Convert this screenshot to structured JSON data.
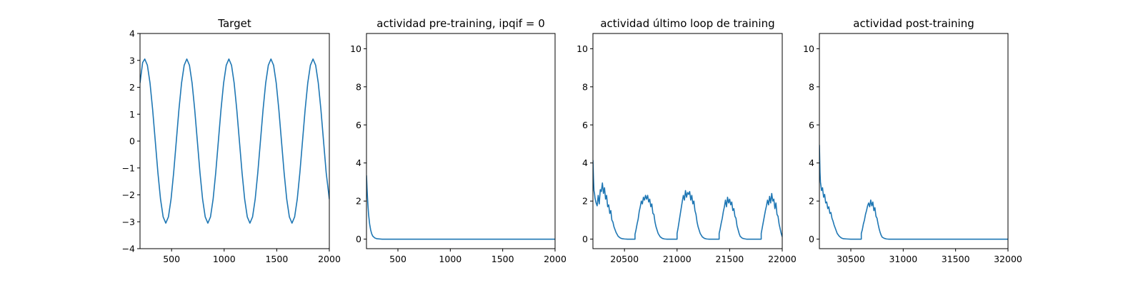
{
  "chart_data": [
    {
      "type": "line",
      "title": "Target",
      "xlabel": "",
      "ylabel": "",
      "xlim": [
        200,
        2000
      ],
      "ylim": [
        -4,
        4
      ],
      "xticks": [
        500,
        1000,
        1500,
        2000
      ],
      "yticks": [
        -4,
        -3,
        -2,
        -1,
        0,
        1,
        2,
        3,
        4
      ],
      "grid": false,
      "legend": "none",
      "color": "#1f77b4",
      "series": [
        {
          "description": "sinusoid amplitude 3.05, period 400, peaks near x=245, 645, 1045, 1445, 1845",
          "x": [
            200,
            225,
            245,
            270,
            295,
            320,
            345,
            370,
            395,
            420,
            445,
            470,
            495,
            520,
            545,
            570,
            595,
            620,
            645,
            670,
            695,
            720,
            745,
            770,
            795,
            820,
            845,
            870,
            895,
            920,
            945,
            970,
            995,
            1020,
            1045,
            1070,
            1095,
            1120,
            1145,
            1170,
            1195,
            1220,
            1245,
            1270,
            1295,
            1320,
            1345,
            1370,
            1395,
            1420,
            1445,
            1470,
            1495,
            1520,
            1545,
            1570,
            1595,
            1620,
            1645,
            1670,
            1695,
            1720,
            1745,
            1770,
            1795,
            1820,
            1845,
            1870,
            1895,
            1920,
            1945,
            1970,
            2000
          ],
          "y": [
            2.16,
            2.92,
            3.05,
            2.82,
            2.16,
            1.17,
            0.0,
            -1.17,
            -2.16,
            -2.82,
            -3.05,
            -2.82,
            -2.16,
            -1.17,
            0.0,
            1.17,
            2.16,
            2.82,
            3.05,
            2.82,
            2.16,
            1.17,
            0.0,
            -1.17,
            -2.16,
            -2.82,
            -3.05,
            -2.82,
            -2.16,
            -1.17,
            0.0,
            1.17,
            2.16,
            2.82,
            3.05,
            2.82,
            2.16,
            1.17,
            0.0,
            -1.17,
            -2.16,
            -2.82,
            -3.05,
            -2.82,
            -2.16,
            -1.17,
            0.0,
            1.17,
            2.16,
            2.82,
            3.05,
            2.82,
            2.16,
            1.17,
            0.0,
            -1.17,
            -2.16,
            -2.82,
            -3.05,
            -2.82,
            -2.16,
            -1.17,
            0.0,
            1.17,
            2.16,
            2.82,
            3.05,
            2.82,
            2.16,
            1.17,
            0.0,
            -1.17,
            -2.16
          ]
        }
      ]
    },
    {
      "type": "line",
      "title": "actividad pre-training, ipqif = 0",
      "xlabel": "",
      "ylabel": "",
      "xlim": [
        200,
        2000
      ],
      "ylim": [
        -0.5,
        10.8
      ],
      "xticks": [
        500,
        1000,
        1500,
        2000
      ],
      "yticks": [
        0,
        2,
        4,
        6,
        8,
        10
      ],
      "grid": false,
      "legend": "none",
      "color": "#1f77b4",
      "series": [
        {
          "x": [
            200,
            205,
            210,
            215,
            220,
            230,
            240,
            250,
            260,
            280,
            300,
            350,
            400,
            600,
            1000,
            1500,
            2000
          ],
          "y": [
            3.35,
            2.7,
            2.15,
            1.7,
            1.3,
            0.8,
            0.48,
            0.28,
            0.16,
            0.06,
            0.02,
            0.0,
            0.0,
            0.0,
            0.0,
            0.0,
            0.0
          ]
        }
      ]
    },
    {
      "type": "line",
      "title": "actividad último loop de training",
      "xlabel": "",
      "ylabel": "",
      "xlim": [
        20200,
        22000
      ],
      "ylim": [
        -0.5,
        10.8
      ],
      "xticks": [
        20500,
        21000,
        21500,
        22000
      ],
      "yticks": [
        0,
        2,
        4,
        6,
        8,
        10
      ],
      "grid": false,
      "legend": "none",
      "color": "#1f77b4",
      "series": [
        {
          "x": [
            20200,
            20205,
            20210,
            20215,
            20220,
            20230,
            20240,
            20250,
            20260,
            20270,
            20280,
            20290,
            20300,
            20310,
            20320,
            20330,
            20340,
            20350,
            20360,
            20370,
            20380,
            20390,
            20400,
            20420,
            20440,
            20460,
            20480,
            20500,
            20530,
            20560,
            20600,
            20600,
            20610,
            20620,
            20630,
            20640,
            20650,
            20660,
            20670,
            20680,
            20690,
            20700,
            20710,
            20720,
            20730,
            20740,
            20750,
            20760,
            20770,
            20780,
            20790,
            20800,
            20820,
            20840,
            20860,
            20880,
            20900,
            20930,
            20960,
            21000,
            21000,
            21010,
            21020,
            21030,
            21040,
            21050,
            21060,
            21070,
            21080,
            21090,
            21100,
            21110,
            21120,
            21130,
            21140,
            21150,
            21160,
            21170,
            21180,
            21190,
            21200,
            21220,
            21240,
            21260,
            21280,
            21300,
            21330,
            21360,
            21400,
            21400,
            21410,
            21420,
            21430,
            21440,
            21450,
            21460,
            21470,
            21480,
            21490,
            21500,
            21510,
            21520,
            21530,
            21540,
            21550,
            21560,
            21570,
            21580,
            21590,
            21600,
            21620,
            21640,
            21660,
            21680,
            21700,
            21730,
            21760,
            21800,
            21800,
            21810,
            21820,
            21830,
            21840,
            21850,
            21860,
            21870,
            21880,
            21890,
            21900,
            21910,
            21920,
            21930,
            21940,
            21950,
            21960,
            21970,
            21980,
            21990,
            22000
          ],
          "y": [
            4.15,
            3.2,
            2.55,
            2.4,
            2.15,
            1.9,
            1.75,
            2.3,
            1.85,
            2.6,
            2.5,
            2.95,
            2.4,
            2.7,
            2.1,
            2.3,
            1.7,
            1.8,
            1.35,
            1.5,
            1.0,
            0.9,
            0.65,
            0.35,
            0.15,
            0.06,
            0.02,
            0.01,
            0.0,
            0.0,
            0.0,
            0.25,
            0.5,
            0.8,
            1.05,
            1.45,
            1.7,
            2.0,
            1.85,
            2.2,
            2.05,
            2.3,
            2.1,
            2.3,
            1.95,
            2.1,
            1.7,
            1.85,
            1.35,
            1.3,
            0.9,
            0.65,
            0.3,
            0.12,
            0.04,
            0.01,
            0.0,
            0.0,
            0.0,
            0.0,
            0.3,
            0.6,
            0.95,
            1.3,
            1.65,
            2.0,
            2.3,
            2.05,
            2.55,
            2.2,
            2.45,
            2.35,
            2.5,
            2.05,
            2.3,
            1.85,
            2.0,
            1.5,
            1.3,
            0.9,
            0.65,
            0.3,
            0.12,
            0.04,
            0.01,
            0.0,
            0.0,
            0.0,
            0.0,
            0.3,
            0.55,
            0.85,
            1.1,
            1.45,
            1.7,
            2.05,
            1.7,
            2.2,
            1.9,
            2.1,
            1.8,
            1.95,
            1.5,
            1.6,
            1.2,
            1.1,
            0.7,
            0.5,
            0.3,
            0.15,
            0.05,
            0.02,
            0.0,
            0.0,
            0.0,
            0.0,
            0.0,
            0.0,
            0.3,
            0.6,
            0.9,
            1.2,
            1.5,
            1.75,
            2.05,
            1.8,
            2.25,
            1.9,
            2.4,
            2.0,
            2.1,
            1.6,
            1.9,
            1.3,
            1.2,
            0.8,
            0.55,
            0.3,
            0.12
          ]
        }
      ]
    },
    {
      "type": "line",
      "title": "actividad post-training",
      "xlabel": "",
      "ylabel": "",
      "xlim": [
        30200,
        32000
      ],
      "ylim": [
        -0.5,
        10.8
      ],
      "xticks": [
        30500,
        31000,
        31500,
        32000
      ],
      "yticks": [
        0,
        2,
        4,
        6,
        8,
        10
      ],
      "grid": false,
      "legend": "none",
      "color": "#1f77b4",
      "series": [
        {
          "x": [
            30200,
            30203,
            30206,
            30210,
            30215,
            30220,
            30230,
            30240,
            30250,
            30260,
            30270,
            30280,
            30290,
            30300,
            30310,
            30320,
            30330,
            30340,
            30350,
            30360,
            30370,
            30390,
            30410,
            30430,
            30460,
            30500,
            30550,
            30600,
            30600,
            30610,
            30620,
            30630,
            30640,
            30650,
            30660,
            30670,
            30680,
            30690,
            30700,
            30710,
            30720,
            30730,
            30740,
            30750,
            30760,
            30770,
            30780,
            30790,
            30800,
            30820,
            30840,
            30860,
            30900,
            30950,
            31000,
            31500,
            32000
          ],
          "y": [
            4.95,
            4.2,
            3.5,
            3.0,
            2.8,
            2.55,
            2.7,
            2.2,
            2.35,
            1.9,
            1.95,
            1.6,
            1.7,
            1.35,
            1.4,
            1.1,
            0.95,
            0.75,
            0.6,
            0.45,
            0.3,
            0.15,
            0.06,
            0.02,
            0.01,
            0.0,
            0.0,
            0.0,
            0.3,
            0.5,
            0.8,
            1.0,
            1.3,
            1.5,
            1.75,
            1.9,
            1.7,
            2.05,
            1.75,
            1.95,
            1.5,
            1.65,
            1.2,
            1.1,
            0.8,
            0.55,
            0.35,
            0.2,
            0.1,
            0.04,
            0.01,
            0.0,
            0.0,
            0.0,
            0.0,
            0.0,
            0.0
          ]
        }
      ]
    }
  ]
}
